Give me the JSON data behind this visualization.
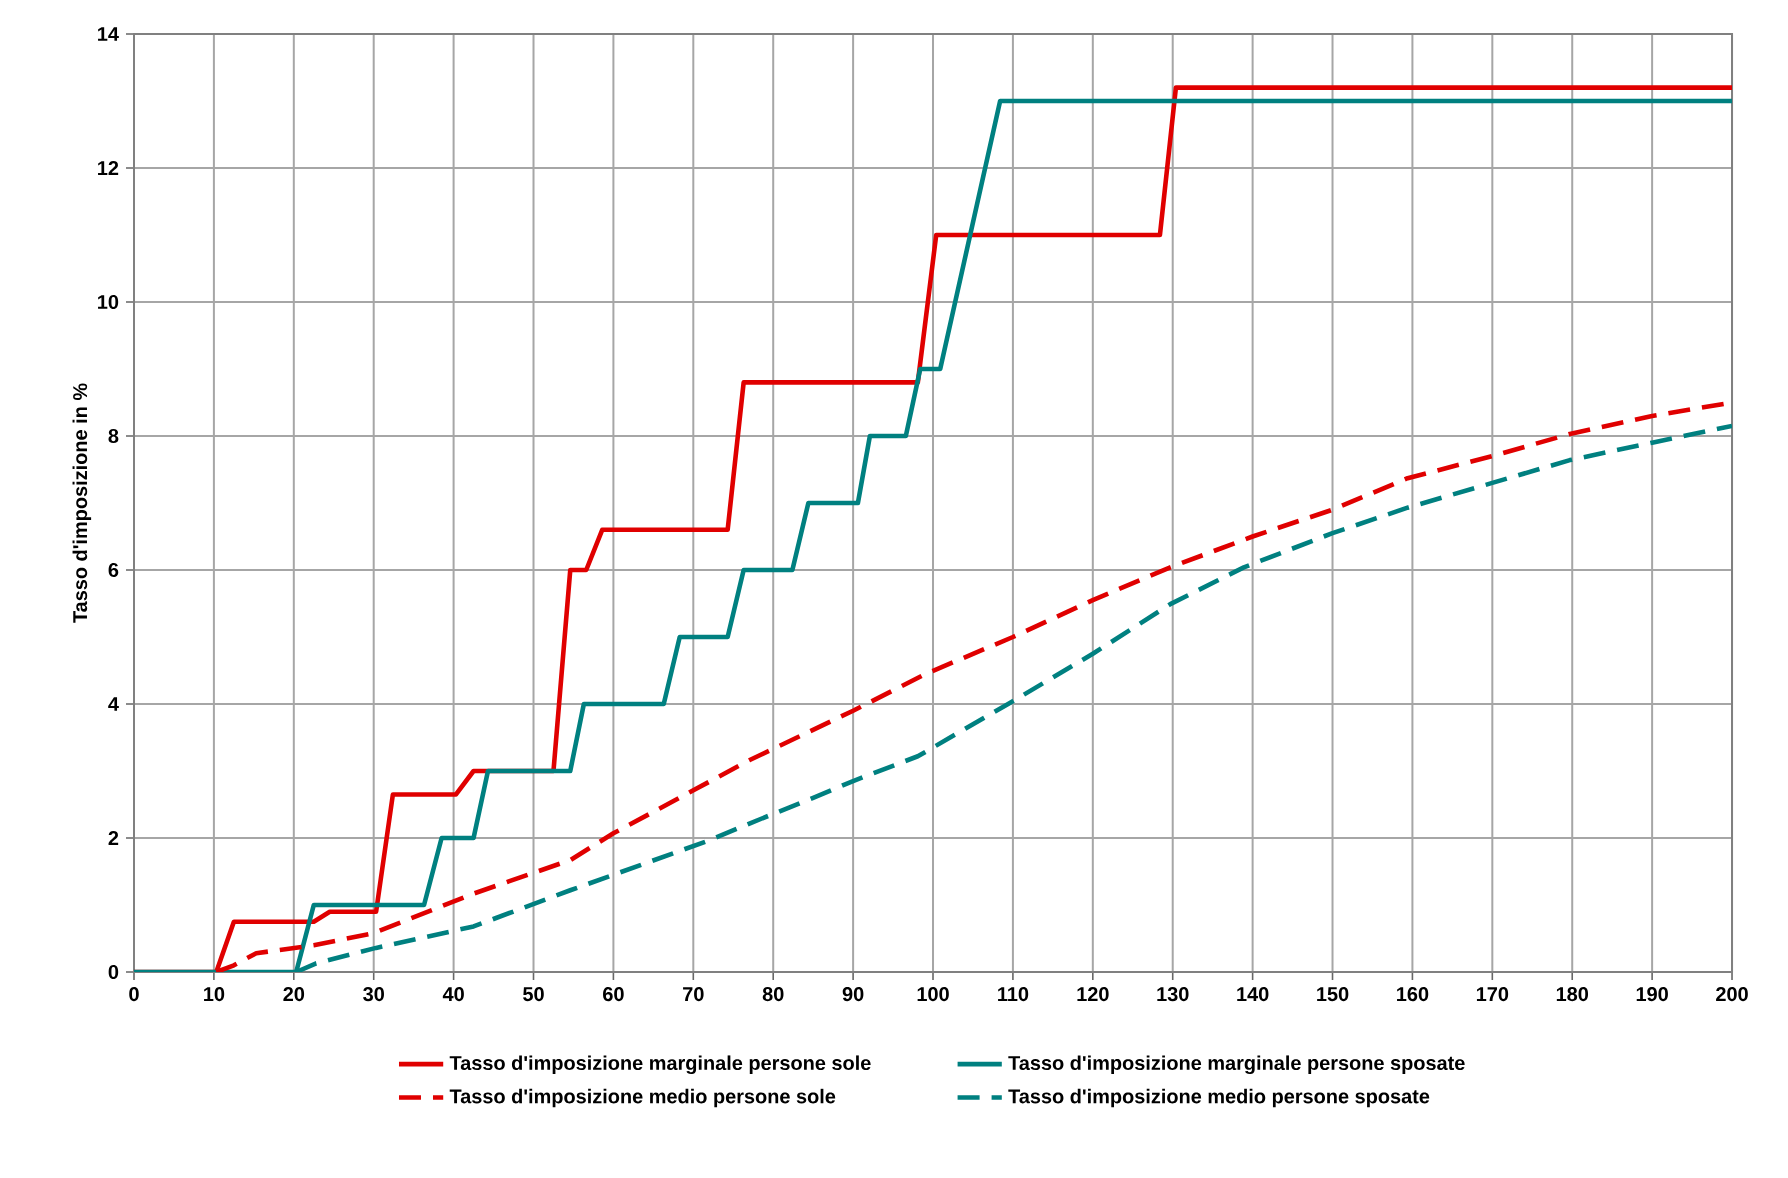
{
  "chart_data": {
    "type": "line",
    "ylabel": "Tasso d'imposizione in %",
    "xlim": [
      0,
      200
    ],
    "ylim": [
      0,
      14
    ],
    "xticks": [
      0,
      10,
      20,
      30,
      40,
      50,
      60,
      70,
      80,
      90,
      100,
      110,
      120,
      130,
      140,
      150,
      160,
      170,
      180,
      190,
      200
    ],
    "yticks": [
      0,
      2,
      4,
      6,
      8,
      10,
      12,
      14
    ],
    "grid": true,
    "legend": "bottom",
    "marker": "none",
    "series": [
      {
        "name": "Tasso d'imposizione marginale persone sole",
        "color": "#e00000",
        "line_style": "solid",
        "x": [
          0,
          10.3,
          12.5,
          22.5,
          24.5,
          30.3,
          32.4,
          40.3,
          42.5,
          52.5,
          54.6,
          56.6,
          58.6,
          74.3,
          76.3,
          98.1,
          100.4,
          128.4,
          130.4,
          200
        ],
        "values": [
          0,
          0,
          0.75,
          0.75,
          0.9,
          0.9,
          2.65,
          2.65,
          3.0,
          3.0,
          6.0,
          6.0,
          6.6,
          6.6,
          8.8,
          8.8,
          11.0,
          11.0,
          13.2,
          13.2
        ]
      },
      {
        "name": "Tasso d'imposizione marginale persone sposate",
        "color": "#008080",
        "line_style": "solid",
        "x": [
          0,
          20.3,
          22.5,
          36.3,
          38.5,
          42.5,
          44.3,
          54.6,
          56.3,
          66.3,
          68.3,
          74.3,
          76.3,
          82.4,
          84.4,
          90.6,
          92.1,
          96.6,
          98.4,
          100.9,
          108.4,
          200
        ],
        "values": [
          0,
          0,
          1.0,
          1.0,
          2.0,
          2.0,
          3.0,
          3.0,
          4.0,
          4.0,
          5.0,
          5.0,
          6.0,
          6.0,
          7.0,
          7.0,
          8.0,
          8.0,
          9.0,
          9.0,
          13.0,
          13.0
        ]
      },
      {
        "name": "Tasso d'imposizione medio persone sole",
        "color": "#e00000",
        "line_style": "dashed",
        "x": [
          10.3,
          12.5,
          15.3,
          22.5,
          30,
          42.5,
          54.6,
          60,
          77,
          90,
          99.1,
          110,
          120,
          129.7,
          140,
          150,
          159.4,
          170,
          179.7,
          190,
          200
        ],
        "values": [
          0,
          0.1,
          0.28,
          0.4,
          0.58,
          1.17,
          1.67,
          2.07,
          3.16,
          3.9,
          4.45,
          5.0,
          5.55,
          6.04,
          6.5,
          6.9,
          7.37,
          7.7,
          8.03,
          8.3,
          8.5
        ]
      },
      {
        "name": "Tasso d'imposizione medio persone sposate",
        "color": "#008080",
        "line_style": "dashed",
        "x": [
          20.3,
          22.8,
          30.3,
          42.5,
          54.6,
          72.1,
          77.1,
          85,
          90,
          98.1,
          109.4,
          120,
          129.7,
          138.9,
          150,
          159.4,
          170,
          179.7,
          190,
          200
        ],
        "values": [
          0,
          0.13,
          0.36,
          0.68,
          1.22,
          1.97,
          2.22,
          2.6,
          2.85,
          3.22,
          4.0,
          4.75,
          5.49,
          6.04,
          6.55,
          6.93,
          7.3,
          7.64,
          7.9,
          8.15
        ]
      }
    ]
  }
}
